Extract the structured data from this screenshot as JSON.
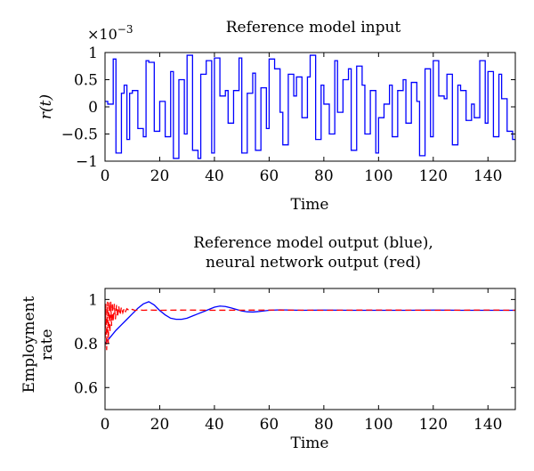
{
  "chart_data": [
    {
      "type": "line",
      "title": "Reference model input",
      "ylabel": "r(t)",
      "xlabel": "Time",
      "exponent_label": "×10",
      "exponent_power": "−3",
      "xlim": [
        0,
        150
      ],
      "ylim": [
        -1,
        1
      ],
      "xticks": [
        0,
        20,
        40,
        60,
        80,
        100,
        120,
        140
      ],
      "yticks": [
        -1,
        -0.5,
        0,
        0.5,
        1
      ],
      "ytick_labels": [
        "−1",
        "−0.5",
        "0",
        "0.5",
        "1"
      ],
      "grid": false,
      "series": [
        {
          "color": "#0000ff",
          "step": true,
          "x": [
            0,
            1,
            3,
            4,
            6,
            7,
            8,
            9,
            10,
            12,
            14,
            15,
            16,
            18,
            20,
            22,
            24,
            25,
            27,
            29,
            30,
            32,
            34,
            35,
            37,
            39,
            40,
            42,
            44,
            45,
            47,
            49,
            50,
            52,
            54,
            55,
            57,
            59,
            60,
            62,
            64,
            65,
            67,
            69,
            70,
            72,
            74,
            75,
            77,
            79,
            80,
            82,
            84,
            85,
            87,
            89,
            90,
            92,
            94,
            95,
            97,
            99,
            100,
            102,
            104,
            105,
            107,
            109,
            110,
            112,
            114,
            115,
            117,
            119,
            120,
            122,
            124,
            125,
            127,
            129,
            130,
            132,
            134,
            135,
            137,
            139,
            140,
            142,
            144,
            145,
            147,
            149,
            150
          ],
          "y": [
            0.1,
            0.05,
            0.88,
            -0.85,
            0.25,
            0.4,
            -0.6,
            0.25,
            0.3,
            -0.4,
            -0.55,
            0.85,
            0.82,
            -0.45,
            0.1,
            -0.55,
            0.65,
            -0.95,
            0.5,
            -0.5,
            0.95,
            -0.8,
            -0.95,
            0.6,
            0.85,
            -0.85,
            0.9,
            0.2,
            0.3,
            -0.3,
            0.3,
            0.9,
            -0.85,
            0.25,
            0.62,
            -0.8,
            0.35,
            -0.4,
            0.88,
            0.7,
            -0.1,
            -0.7,
            0.6,
            0.2,
            0.55,
            -0.2,
            0.55,
            0.95,
            -0.6,
            0.4,
            0.05,
            -0.5,
            0.85,
            -0.1,
            0.5,
            0.7,
            -0.8,
            0.75,
            0.4,
            -0.5,
            0.3,
            -0.85,
            -0.2,
            0.05,
            0.4,
            -0.55,
            0.3,
            0.5,
            -0.3,
            0.45,
            0.1,
            -0.9,
            0.7,
            -0.55,
            0.85,
            0.2,
            0.15,
            0.6,
            -0.7,
            0.4,
            0.3,
            -0.25,
            0.05,
            -0.2,
            0.85,
            -0.3,
            0.65,
            -0.55,
            0.6,
            0.15,
            -0.45,
            -0.6,
            -0.6
          ]
        }
      ]
    },
    {
      "type": "line",
      "title_lines": [
        "Reference model output (blue),",
        "neural network output  (red)"
      ],
      "ylabel_lines": [
        "Employment",
        "rate"
      ],
      "xlabel": "Time",
      "xlim": [
        0,
        150
      ],
      "ylim": [
        0.5,
        1.05
      ],
      "xticks": [
        0,
        20,
        40,
        60,
        80,
        100,
        120,
        140
      ],
      "yticks": [
        0.6,
        0.8,
        1
      ],
      "ytick_labels": [
        "0.6",
        "0.8",
        "1"
      ],
      "grid": false,
      "series": [
        {
          "color": "#0000ff",
          "x": [
            0,
            1,
            2,
            4,
            6,
            8,
            10,
            12,
            14,
            16,
            18,
            20,
            22,
            24,
            26,
            28,
            30,
            32,
            34,
            36,
            38,
            40,
            42,
            44,
            46,
            48,
            50,
            52,
            54,
            56,
            58,
            60,
            64,
            68,
            72,
            80,
            90,
            100,
            110,
            120,
            130,
            140,
            150
          ],
          "y": [
            0.8,
            0.815,
            0.83,
            0.86,
            0.885,
            0.91,
            0.935,
            0.96,
            0.98,
            0.99,
            0.975,
            0.95,
            0.93,
            0.915,
            0.91,
            0.91,
            0.915,
            0.925,
            0.935,
            0.945,
            0.955,
            0.965,
            0.97,
            0.968,
            0.962,
            0.955,
            0.948,
            0.944,
            0.943,
            0.945,
            0.948,
            0.951,
            0.953,
            0.952,
            0.951,
            0.952,
            0.951,
            0.951,
            0.951,
            0.952,
            0.951,
            0.951,
            0.951
          ]
        },
        {
          "color": "#ff0000",
          "dash": true,
          "x": [
            0,
            0.3,
            0.6,
            0.9,
            1.2,
            1.5,
            1.8,
            2.1,
            2.4,
            2.7,
            3,
            3.4,
            3.8,
            4.2,
            4.6,
            5,
            5.5,
            6,
            6.5,
            7,
            7.5,
            8,
            9,
            10,
            11,
            12,
            14,
            16,
            20,
            30,
            40,
            60,
            80,
            100,
            120,
            140,
            150
          ],
          "y": [
            0.78,
            0.98,
            0.77,
            0.99,
            0.8,
            0.99,
            0.85,
            0.99,
            0.88,
            0.985,
            0.9,
            0.98,
            0.91,
            0.975,
            0.92,
            0.97,
            0.93,
            0.965,
            0.94,
            0.96,
            0.945,
            0.958,
            0.948,
            0.955,
            0.95,
            0.953,
            0.951,
            0.952,
            0.951,
            0.952,
            0.951,
            0.952,
            0.951,
            0.952,
            0.951,
            0.952,
            0.951
          ]
        }
      ]
    }
  ]
}
